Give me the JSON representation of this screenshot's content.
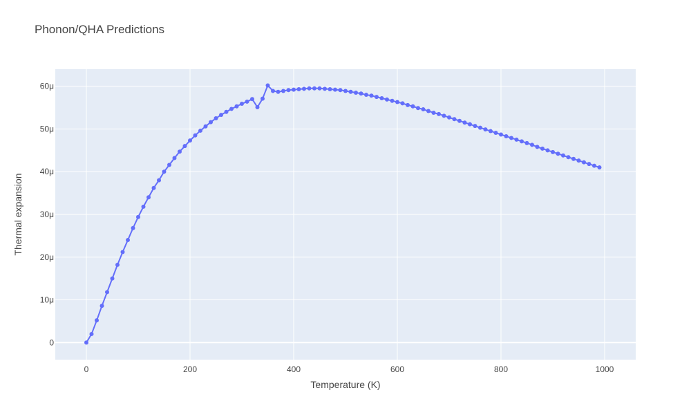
{
  "chart_data": {
    "type": "line",
    "title": "Phonon/QHA Predictions",
    "xlabel": "Temperature (K)",
    "ylabel": "Thermal expansion",
    "xlim": [
      -60,
      1060
    ],
    "ylim": [
      -4e-06,
      6.4e-05
    ],
    "x_ticks": [
      0,
      200,
      400,
      600,
      800,
      1000
    ],
    "x_tick_labels": [
      "0",
      "200",
      "400",
      "600",
      "800",
      "1000"
    ],
    "y_ticks": [
      0,
      1e-05,
      2e-05,
      3e-05,
      4e-05,
      5e-05,
      6e-05
    ],
    "y_tick_labels": [
      "0",
      "10μ",
      "20μ",
      "30μ",
      "40μ",
      "50μ",
      "60μ"
    ],
    "grid": true,
    "mode": "lines+markers",
    "colors": {
      "series": "#636efa",
      "plot_bg": "#e5ecf6",
      "grid": "#ffffff",
      "text": "#444444"
    },
    "series": [
      {
        "x": [
          0,
          10,
          20,
          30,
          40,
          50,
          60,
          70,
          80,
          90,
          100,
          110,
          120,
          130,
          140,
          150,
          160,
          170,
          180,
          190,
          200,
          210,
          220,
          230,
          240,
          250,
          260,
          270,
          280,
          290,
          300,
          310,
          320,
          330,
          340,
          350,
          360,
          370,
          380,
          390,
          400,
          410,
          420,
          430,
          440,
          450,
          460,
          470,
          480,
          490,
          500,
          510,
          520,
          530,
          540,
          550,
          560,
          570,
          580,
          590,
          600,
          610,
          620,
          630,
          640,
          650,
          660,
          670,
          680,
          690,
          700,
          710,
          720,
          730,
          740,
          750,
          760,
          770,
          780,
          790,
          800,
          810,
          820,
          830,
          840,
          850,
          860,
          870,
          880,
          890,
          900,
          910,
          920,
          930,
          940,
          950,
          960,
          970,
          980,
          990
        ],
        "y": [
          0,
          2e-06,
          5.2e-06,
          8.6e-06,
          1.18e-05,
          1.5e-05,
          1.82e-05,
          2.12e-05,
          2.4e-05,
          2.68e-05,
          2.94e-05,
          3.18e-05,
          3.4e-05,
          3.62e-05,
          3.8e-05,
          4e-05,
          4.16e-05,
          4.32e-05,
          4.47e-05,
          4.6e-05,
          4.73e-05,
          4.85e-05,
          4.96e-05,
          5.06e-05,
          5.16e-05,
          5.25e-05,
          5.33e-05,
          5.4e-05,
          5.47e-05,
          5.53e-05,
          5.59e-05,
          5.64e-05,
          5.7e-05,
          5.51e-05,
          5.71e-05,
          6.02e-05,
          5.89e-05,
          5.87e-05,
          5.89e-05,
          5.91e-05,
          5.92e-05,
          5.93e-05,
          5.94e-05,
          5.95e-05,
          5.95e-05,
          5.95e-05,
          5.94e-05,
          5.93e-05,
          5.92e-05,
          5.91e-05,
          5.89e-05,
          5.87e-05,
          5.85e-05,
          5.83e-05,
          5.8e-05,
          5.78e-05,
          5.75e-05,
          5.72e-05,
          5.69e-05,
          5.66e-05,
          5.63e-05,
          5.6e-05,
          5.56e-05,
          5.53e-05,
          5.49e-05,
          5.46e-05,
          5.42e-05,
          5.38e-05,
          5.35e-05,
          5.31e-05,
          5.27e-05,
          5.23e-05,
          5.19e-05,
          5.15e-05,
          5.11e-05,
          5.07e-05,
          5.03e-05,
          4.99e-05,
          4.95e-05,
          4.91e-05,
          4.87e-05,
          4.83e-05,
          4.79e-05,
          4.75e-05,
          4.71e-05,
          4.67e-05,
          4.63e-05,
          4.58e-05,
          4.54e-05,
          4.5e-05,
          4.46e-05,
          4.42e-05,
          4.38e-05,
          4.34e-05,
          4.3e-05,
          4.26e-05,
          4.22e-05,
          4.18e-05,
          4.14e-05,
          4.1e-05
        ]
      }
    ]
  }
}
